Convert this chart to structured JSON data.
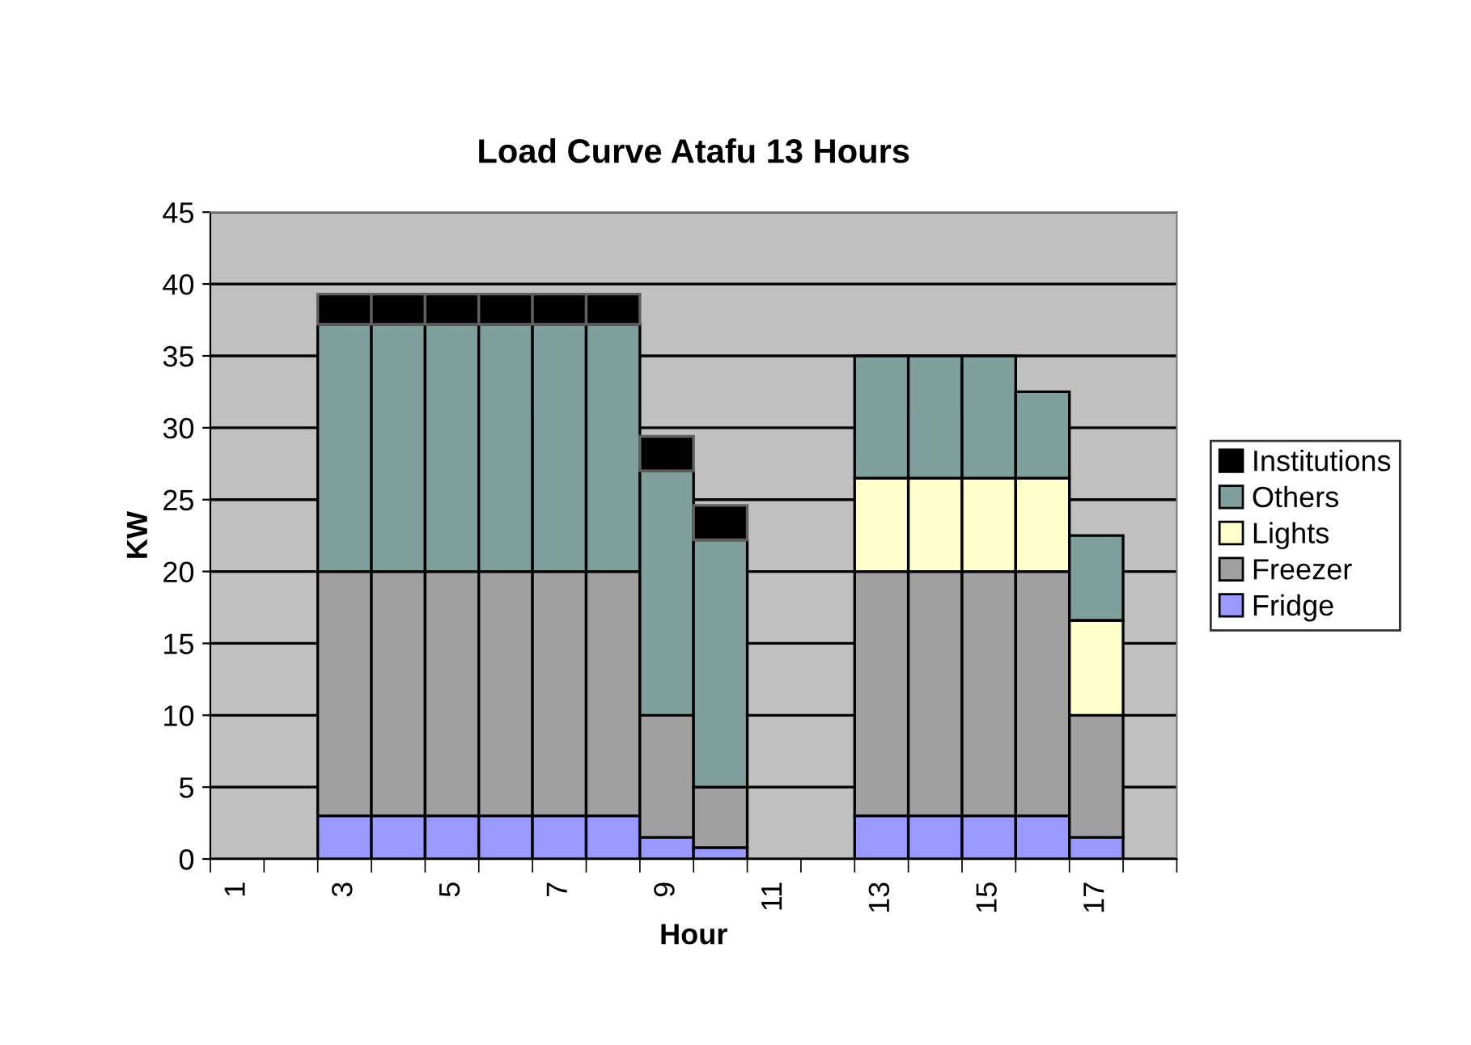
{
  "chart_data": {
    "type": "bar",
    "title": "Load Curve Atafu 13 Hours",
    "xlabel": "Hour",
    "ylabel": "KW",
    "categories": [
      "1",
      null,
      "3",
      null,
      "5",
      null,
      "7",
      null,
      "9",
      null,
      "11",
      null,
      "13",
      null,
      "15",
      null,
      "17",
      null
    ],
    "stacked": true,
    "ylim": [
      0,
      45
    ],
    "yticks": [
      0,
      5,
      10,
      15,
      20,
      25,
      30,
      35,
      40,
      45
    ],
    "grid": "y",
    "legend": "right",
    "series": [
      {
        "name": "Fridge",
        "color": "#9999ff",
        "values": [
          null,
          null,
          3,
          3,
          3,
          3,
          3,
          3,
          1.5,
          0.8,
          null,
          null,
          3,
          3,
          3,
          3,
          1.5,
          null
        ]
      },
      {
        "name": "Freezer",
        "color": "#a0a0a0",
        "values": [
          null,
          null,
          17,
          17,
          17,
          17,
          17,
          17,
          8.5,
          4.2,
          null,
          null,
          17,
          17,
          17,
          17,
          8.5,
          null
        ]
      },
      {
        "name": "Lights",
        "color": "#ffffcc",
        "values": [
          null,
          null,
          null,
          null,
          null,
          null,
          null,
          null,
          null,
          null,
          null,
          null,
          6.5,
          6.5,
          6.5,
          6.5,
          6.6,
          null
        ]
      },
      {
        "name": "Others",
        "color": "#7f9f9c",
        "values": [
          null,
          null,
          17.2,
          17.2,
          17.2,
          17.2,
          17.2,
          17.2,
          17,
          17.2,
          null,
          null,
          8.5,
          8.5,
          8.5,
          6,
          5.9,
          null
        ]
      },
      {
        "name": "Institutions",
        "color": "#000000",
        "values": [
          null,
          null,
          2.1,
          2.1,
          2.1,
          2.1,
          2.1,
          2.1,
          2.4,
          2.4,
          null,
          null,
          null,
          null,
          null,
          null,
          null,
          null
        ]
      }
    ]
  }
}
